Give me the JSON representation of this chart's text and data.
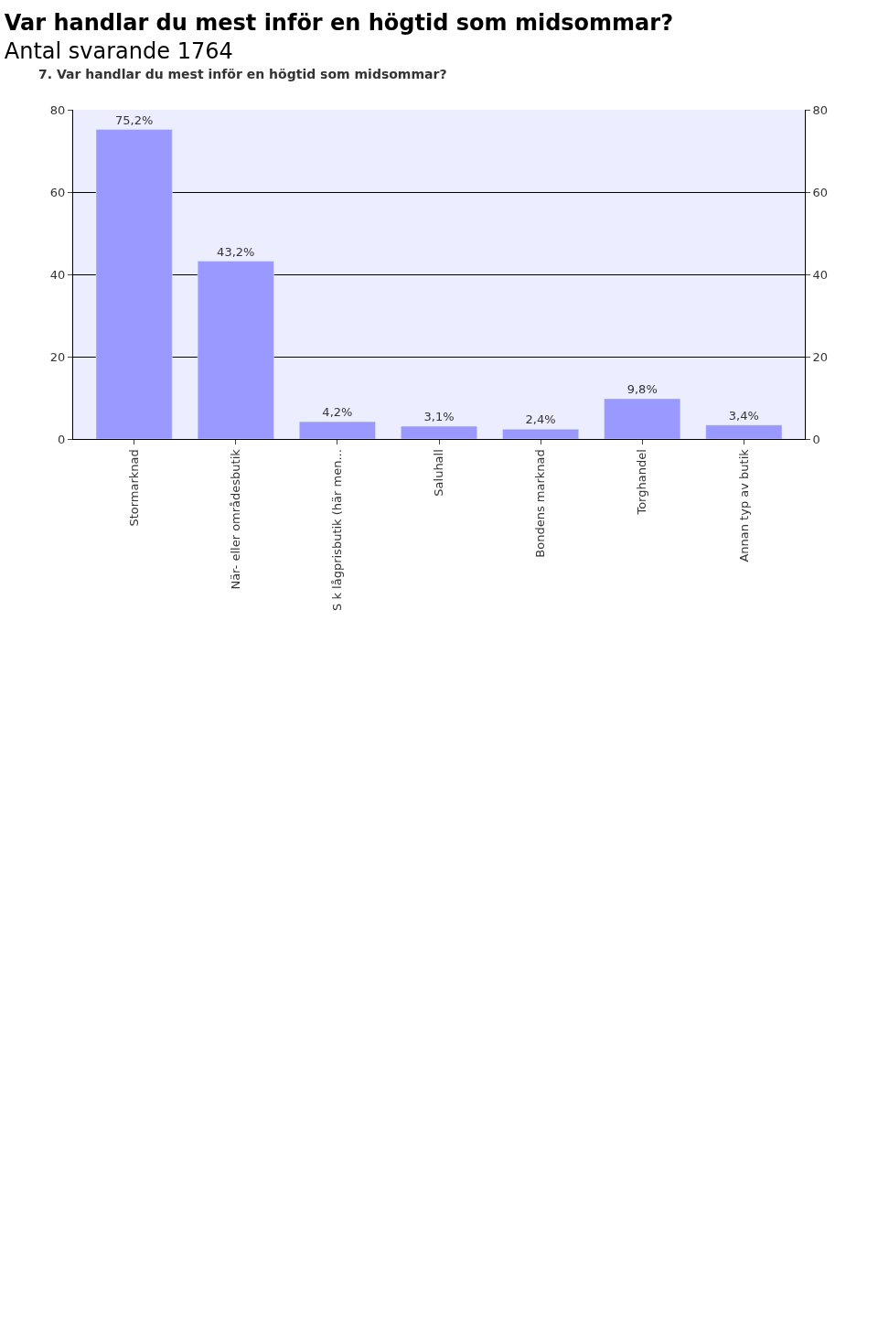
{
  "chart_data": {
    "type": "bar",
    "title": "Var handlar du mest inför en högtid som midsommar?",
    "subtitle": "Antal svarande 1764",
    "annotations": [
      "7. Var handlar du mest inför en högtid som midsommar?"
    ],
    "categories": [
      "Stormarknad",
      "När- eller områdesbutik",
      "S k lågprisbutik (här men...",
      "Saluhall",
      "Bondens marknad",
      "Torghandel",
      "Annan typ av butik"
    ],
    "values": [
      75.2,
      43.2,
      4.2,
      3.1,
      2.4,
      9.8,
      3.4
    ],
    "value_labels": [
      "75,2%",
      "43,2%",
      "4,2%",
      "3,1%",
      "2,4%",
      "9,8%",
      "3,4%"
    ],
    "color": "#9999ff",
    "ylim": [
      0,
      80
    ],
    "yticks": [
      0,
      20,
      40,
      60,
      80
    ],
    "y2lim": [
      0,
      80
    ],
    "y2ticks": [
      0,
      20,
      40,
      60,
      80
    ],
    "grid": "y"
  }
}
